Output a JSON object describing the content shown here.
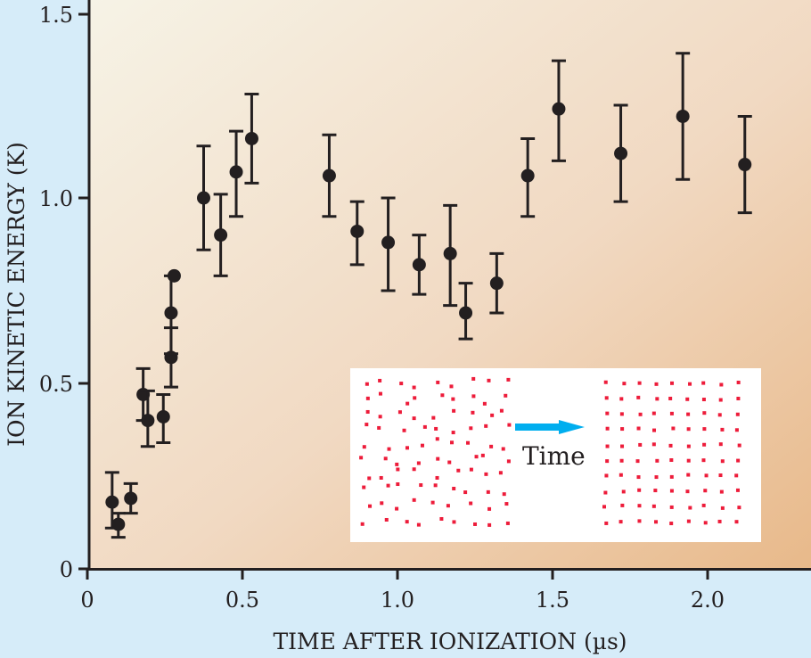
{
  "chart_data": {
    "type": "scatter",
    "title": "",
    "xlabel": "TIME AFTER IONIZATION (µs)",
    "ylabel": "ION KINETIC ENERGY (K)",
    "xlim": [
      0,
      2.35
    ],
    "ylim": [
      0,
      1.5
    ],
    "x_ticks": [
      0,
      0.5,
      1.0,
      1.5,
      2.0
    ],
    "x_tick_labels": [
      "0",
      "0.5",
      "1.0",
      "1.5",
      "2.0"
    ],
    "y_ticks": [
      0,
      0.5,
      1.0,
      1.5
    ],
    "y_tick_labels": [
      "0",
      "0.5",
      "1.0",
      "1.5"
    ],
    "grid": false,
    "series": [
      {
        "name": "ion kinetic energy",
        "points": [
          {
            "x": 0.08,
            "y": 0.18,
            "lo": 0.11,
            "hi": 0.26
          },
          {
            "x": 0.1,
            "y": 0.12,
            "lo": 0.085,
            "hi": 0.15
          },
          {
            "x": 0.14,
            "y": 0.19,
            "lo": 0.15,
            "hi": 0.23
          },
          {
            "x": 0.18,
            "y": 0.47,
            "lo": 0.4,
            "hi": 0.54
          },
          {
            "x": 0.195,
            "y": 0.4,
            "lo": 0.33,
            "hi": 0.48
          },
          {
            "x": 0.245,
            "y": 0.41,
            "lo": 0.34,
            "hi": 0.47
          },
          {
            "x": 0.27,
            "y": 0.57,
            "lo": 0.49,
            "hi": 0.65
          },
          {
            "x": 0.27,
            "y": 0.69,
            "lo": 0.58,
            "hi": 0.79
          },
          {
            "x": 0.28,
            "y": 0.79,
            "lo": 0.79,
            "hi": 0.79
          },
          {
            "x": 0.375,
            "y": 1.0,
            "lo": 0.86,
            "hi": 1.14
          },
          {
            "x": 0.43,
            "y": 0.9,
            "lo": 0.79,
            "hi": 1.01
          },
          {
            "x": 0.48,
            "y": 1.07,
            "lo": 0.95,
            "hi": 1.18
          },
          {
            "x": 0.53,
            "y": 1.16,
            "lo": 1.04,
            "hi": 1.28
          },
          {
            "x": 0.78,
            "y": 1.06,
            "lo": 0.95,
            "hi": 1.17
          },
          {
            "x": 0.87,
            "y": 0.91,
            "lo": 0.82,
            "hi": 0.99
          },
          {
            "x": 0.97,
            "y": 0.88,
            "lo": 0.75,
            "hi": 1.0
          },
          {
            "x": 1.07,
            "y": 0.82,
            "lo": 0.74,
            "hi": 0.9
          },
          {
            "x": 1.17,
            "y": 0.85,
            "lo": 0.71,
            "hi": 0.98
          },
          {
            "x": 1.22,
            "y": 0.69,
            "lo": 0.62,
            "hi": 0.77
          },
          {
            "x": 1.32,
            "y": 0.77,
            "lo": 0.69,
            "hi": 0.85
          },
          {
            "x": 1.42,
            "y": 1.06,
            "lo": 0.95,
            "hi": 1.16
          },
          {
            "x": 1.52,
            "y": 1.24,
            "lo": 1.1,
            "hi": 1.37
          },
          {
            "x": 1.72,
            "y": 1.12,
            "lo": 0.99,
            "hi": 1.25
          },
          {
            "x": 1.92,
            "y": 1.22,
            "lo": 1.05,
            "hi": 1.39
          },
          {
            "x": 2.12,
            "y": 1.09,
            "lo": 0.96,
            "hi": 1.22
          }
        ]
      }
    ],
    "inset": {
      "label": "Time",
      "arrow_color": "#00aeef",
      "dot_color": "#ed1c3a"
    },
    "colors": {
      "background": "#d6ecf9",
      "plot_top_left": "#f6f3e6",
      "plot_bottom_right": "#e8b98a",
      "marker": "#231f20"
    }
  }
}
